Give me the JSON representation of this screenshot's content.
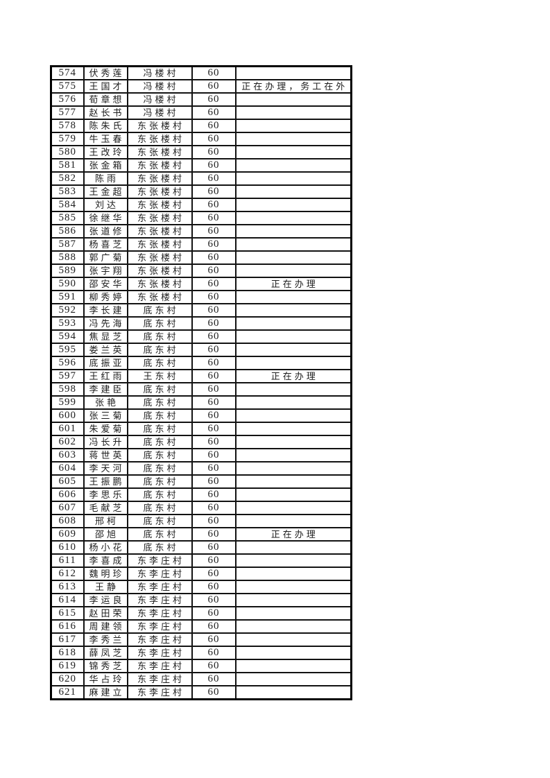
{
  "document": {
    "background_color": "#ffffff",
    "ink_color": "#1d1d1d",
    "grid_line_color": "#000000",
    "fixed_amount_value": "60",
    "remark_processing": "正在办理",
    "remark_processing_away": "正在办理，务工在外"
  },
  "table": {
    "rows": [
      {
        "no": "574",
        "name": "伏秀莲",
        "village": "冯楼村",
        "amount": "60",
        "remark": ""
      },
      {
        "no": "575",
        "name": "王国才",
        "village": "冯楼村",
        "amount": "60",
        "remark": "正在办理，务工在外"
      },
      {
        "no": "576",
        "name": "荀章想",
        "village": "冯楼村",
        "amount": "60",
        "remark": ""
      },
      {
        "no": "577",
        "name": "赵长书",
        "village": "冯楼村",
        "amount": "60",
        "remark": ""
      },
      {
        "no": "578",
        "name": "陈朱氏",
        "village": "东张楼村",
        "amount": "60",
        "remark": ""
      },
      {
        "no": "579",
        "name": "牛玉春",
        "village": "东张楼村",
        "amount": "60",
        "remark": ""
      },
      {
        "no": "580",
        "name": "王改玲",
        "village": "东张楼村",
        "amount": "60",
        "remark": ""
      },
      {
        "no": "581",
        "name": "张金箱",
        "village": "东张楼村",
        "amount": "60",
        "remark": ""
      },
      {
        "no": "582",
        "name": "陈雨",
        "village": "东张楼村",
        "amount": "60",
        "remark": ""
      },
      {
        "no": "583",
        "name": "王金超",
        "village": "东张楼村",
        "amount": "60",
        "remark": ""
      },
      {
        "no": "584",
        "name": "刘达",
        "village": "东张楼村",
        "amount": "60",
        "remark": ""
      },
      {
        "no": "585",
        "name": "徐继华",
        "village": "东张楼村",
        "amount": "60",
        "remark": ""
      },
      {
        "no": "586",
        "name": "张道修",
        "village": "东张楼村",
        "amount": "60",
        "remark": ""
      },
      {
        "no": "587",
        "name": "杨喜芝",
        "village": "东张楼村",
        "amount": "60",
        "remark": ""
      },
      {
        "no": "588",
        "name": "郭广菊",
        "village": "东张楼村",
        "amount": "60",
        "remark": ""
      },
      {
        "no": "589",
        "name": "张宇翔",
        "village": "东张楼村",
        "amount": "60",
        "remark": ""
      },
      {
        "no": "590",
        "name": "邵安华",
        "village": "东张楼村",
        "amount": "60",
        "remark": "正在办理"
      },
      {
        "no": "591",
        "name": "柳秀婷",
        "village": "东张楼村",
        "amount": "60",
        "remark": ""
      },
      {
        "no": "592",
        "name": "李长建",
        "village": "底东村",
        "amount": "60",
        "remark": ""
      },
      {
        "no": "593",
        "name": "冯先海",
        "village": "底东村",
        "amount": "60",
        "remark": ""
      },
      {
        "no": "594",
        "name": "焦显芝",
        "village": "底东村",
        "amount": "60",
        "remark": ""
      },
      {
        "no": "595",
        "name": "娄兰英",
        "village": "底东村",
        "amount": "60",
        "remark": ""
      },
      {
        "no": "596",
        "name": "底振亚",
        "village": "底东村",
        "amount": "60",
        "remark": ""
      },
      {
        "no": "597",
        "name": "王红雨",
        "village": "王东村",
        "amount": "60",
        "remark": "正在办理"
      },
      {
        "no": "598",
        "name": "李建臣",
        "village": "底东村",
        "amount": "60",
        "remark": ""
      },
      {
        "no": "599",
        "name": "张艳",
        "village": "底东村",
        "amount": "60",
        "remark": ""
      },
      {
        "no": "600",
        "name": "张三菊",
        "village": "底东村",
        "amount": "60",
        "remark": ""
      },
      {
        "no": "601",
        "name": "朱爱菊",
        "village": "底东村",
        "amount": "60",
        "remark": ""
      },
      {
        "no": "602",
        "name": "冯长升",
        "village": "底东村",
        "amount": "60",
        "remark": ""
      },
      {
        "no": "603",
        "name": "蒋世英",
        "village": "底东村",
        "amount": "60",
        "remark": ""
      },
      {
        "no": "604",
        "name": "李天河",
        "village": "底东村",
        "amount": "60",
        "remark": ""
      },
      {
        "no": "605",
        "name": "王振鹏",
        "village": "底东村",
        "amount": "60",
        "remark": ""
      },
      {
        "no": "606",
        "name": "李思乐",
        "village": "底东村",
        "amount": "60",
        "remark": ""
      },
      {
        "no": "607",
        "name": "毛献芝",
        "village": "底东村",
        "amount": "60",
        "remark": ""
      },
      {
        "no": "608",
        "name": "邢柯",
        "village": "底东村",
        "amount": "60",
        "remark": ""
      },
      {
        "no": "609",
        "name": "邵旭",
        "village": "底东村",
        "amount": "60",
        "remark": "正在办理"
      },
      {
        "no": "610",
        "name": "杨小花",
        "village": "底东村",
        "amount": "60",
        "remark": ""
      },
      {
        "no": "611",
        "name": "李喜成",
        "village": "东李庄村",
        "amount": "60",
        "remark": ""
      },
      {
        "no": "612",
        "name": "魏明珍",
        "village": "东李庄村",
        "amount": "60",
        "remark": ""
      },
      {
        "no": "613",
        "name": "王静",
        "village": "东李庄村",
        "amount": "60",
        "remark": ""
      },
      {
        "no": "614",
        "name": "李运良",
        "village": "东李庄村",
        "amount": "60",
        "remark": ""
      },
      {
        "no": "615",
        "name": "赵田荣",
        "village": "东李庄村",
        "amount": "60",
        "remark": ""
      },
      {
        "no": "616",
        "name": "周建领",
        "village": "东李庄村",
        "amount": "60",
        "remark": ""
      },
      {
        "no": "617",
        "name": "李秀兰",
        "village": "东李庄村",
        "amount": "60",
        "remark": ""
      },
      {
        "no": "618",
        "name": "薛凤芝",
        "village": "东李庄村",
        "amount": "60",
        "remark": ""
      },
      {
        "no": "619",
        "name": "锦秀芝",
        "village": "东李庄村",
        "amount": "60",
        "remark": ""
      },
      {
        "no": "620",
        "name": "华占玲",
        "village": "东李庄村",
        "amount": "60",
        "remark": ""
      },
      {
        "no": "621",
        "name": "麻建立",
        "village": "东李庄村",
        "amount": "60",
        "remark": ""
      }
    ]
  }
}
